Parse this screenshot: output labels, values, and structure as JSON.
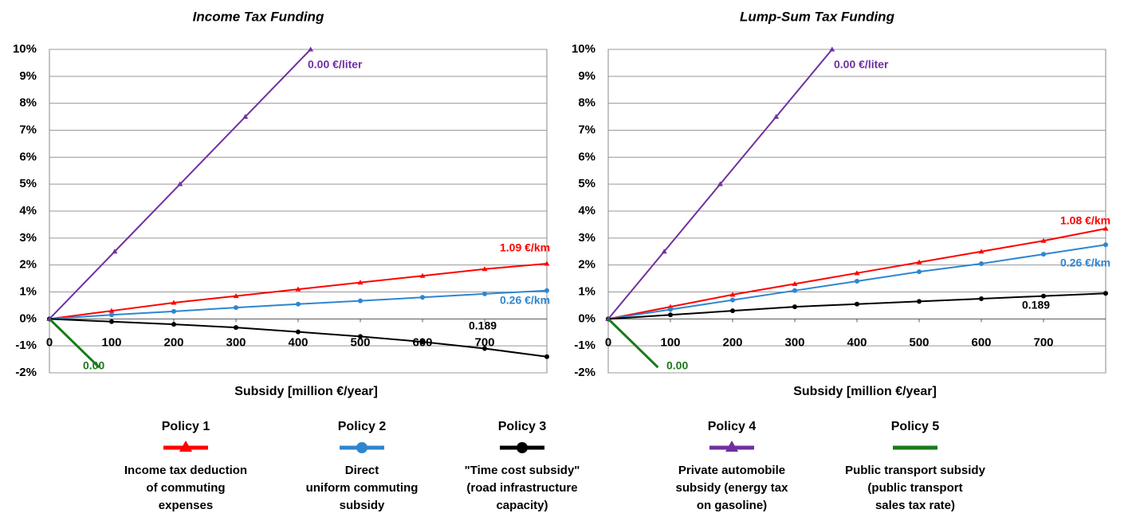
{
  "chart_data": [
    {
      "type": "line",
      "title": "Income Tax Funding",
      "x_label": "Subsidy [million €/year]",
      "xlim": [
        0,
        800
      ],
      "xticks": [
        0,
        100,
        200,
        300,
        400,
        500,
        600,
        700
      ],
      "ylim": [
        -2,
        10
      ],
      "yticks": [
        {
          "value": -2,
          "label": "-2%"
        },
        {
          "value": -1,
          "label": "-1%"
        },
        {
          "value": 0,
          "label": "0%"
        },
        {
          "value": 1,
          "label": "1%"
        },
        {
          "value": 2,
          "label": "2%"
        },
        {
          "value": 3,
          "label": "3%"
        },
        {
          "value": 4,
          "label": "4%"
        },
        {
          "value": 5,
          "label": "5%"
        },
        {
          "value": 6,
          "label": "6%"
        },
        {
          "value": 7,
          "label": "7%"
        },
        {
          "value": 8,
          "label": "8%"
        },
        {
          "value": 9,
          "label": "9%"
        },
        {
          "value": 10,
          "label": "10%"
        }
      ],
      "grid": true,
      "series": [
        {
          "name": "Policy 1",
          "color": "#ff0000",
          "marker": "triangle",
          "x": [
            0,
            100,
            200,
            300,
            400,
            500,
            600,
            700,
            800
          ],
          "values": [
            0,
            0.3,
            0.6,
            0.85,
            1.1,
            1.35,
            1.6,
            1.85,
            2.05
          ]
        },
        {
          "name": "Policy 2",
          "color": "#2e86d0",
          "marker": "circle",
          "x": [
            0,
            100,
            200,
            300,
            400,
            500,
            600,
            700,
            800
          ],
          "values": [
            0,
            0.15,
            0.28,
            0.42,
            0.55,
            0.67,
            0.8,
            0.93,
            1.05
          ]
        },
        {
          "name": "Policy 3",
          "color": "#000000",
          "marker": "circle",
          "x": [
            0,
            100,
            200,
            300,
            400,
            500,
            600,
            700,
            800
          ],
          "values": [
            0,
            -0.1,
            -0.2,
            -0.32,
            -0.48,
            -0.65,
            -0.85,
            -1.1,
            -1.4
          ]
        },
        {
          "name": "Policy 4",
          "color": "#7030a0",
          "marker": "triangle",
          "x": [
            0,
            105,
            210,
            315,
            420
          ],
          "values": [
            0,
            2.5,
            5,
            7.5,
            10
          ]
        },
        {
          "name": "Policy 5",
          "color": "#1a7a1a",
          "marker": "none",
          "x": [
            0,
            80
          ],
          "values": [
            0,
            -1.8
          ]
        }
      ],
      "annotations": [
        "1.09 €/km",
        "0.26 €/km",
        "0.189",
        "0.00 €/liter",
        "0.00"
      ]
    },
    {
      "type": "line",
      "title": "Lump-Sum Tax Funding",
      "x_label": "Subsidy [million €/year]",
      "xlim": [
        0,
        800
      ],
      "xticks": [
        0,
        100,
        200,
        300,
        400,
        500,
        600,
        700
      ],
      "ylim": [
        -2,
        10
      ],
      "yticks": [
        {
          "value": -2,
          "label": "-2%"
        },
        {
          "value": -1,
          "label": "-1%"
        },
        {
          "value": 0,
          "label": "0%"
        },
        {
          "value": 1,
          "label": "1%"
        },
        {
          "value": 2,
          "label": "2%"
        },
        {
          "value": 3,
          "label": "3%"
        },
        {
          "value": 4,
          "label": "4%"
        },
        {
          "value": 5,
          "label": "5%"
        },
        {
          "value": 6,
          "label": "6%"
        },
        {
          "value": 7,
          "label": "7%"
        },
        {
          "value": 8,
          "label": "8%"
        },
        {
          "value": 9,
          "label": "9%"
        },
        {
          "value": 10,
          "label": "10%"
        }
      ],
      "grid": true,
      "series": [
        {
          "color": "#ff0000",
          "marker": "triangle",
          "x": [
            0,
            100,
            200,
            300,
            400,
            500,
            600,
            700,
            800
          ],
          "values": [
            0,
            0.45,
            0.9,
            1.3,
            1.7,
            2.1,
            2.5,
            2.9,
            3.35
          ]
        },
        {
          "color": "#2e86d0",
          "marker": "circle",
          "x": [
            0,
            100,
            200,
            300,
            400,
            500,
            600,
            700,
            800
          ],
          "values": [
            0,
            0.35,
            0.7,
            1.05,
            1.4,
            1.75,
            2.05,
            2.4,
            2.75
          ]
        },
        {
          "color": "#000000",
          "marker": "circle",
          "x": [
            0,
            100,
            200,
            300,
            400,
            500,
            600,
            700,
            800
          ],
          "values": [
            0,
            0.15,
            0.3,
            0.45,
            0.55,
            0.65,
            0.75,
            0.85,
            0.95
          ]
        },
        {
          "color": "#7030a0",
          "marker": "triangle",
          "x": [
            0,
            90,
            180,
            270,
            360
          ],
          "values": [
            0,
            2.5,
            5,
            7.5,
            10
          ]
        },
        {
          "color": "#1a7a1a",
          "marker": "none",
          "x": [
            0,
            80
          ],
          "values": [
            0,
            -1.8
          ]
        }
      ],
      "annotations": [
        "1.08 €/km",
        "0.26 €/km",
        "0.189",
        "0.00 €/liter",
        "0.00"
      ]
    }
  ],
  "legend_descriptions": [
    [
      "Income tax deduction",
      "of commuting",
      "expenses"
    ],
    [
      "Direct",
      "uniform commuting",
      "subsidy"
    ],
    [
      "\"Time cost subsidy\"",
      "(road infrastructure",
      "capacity)"
    ],
    [
      "Private automobile",
      "subsidy (energy tax",
      "on gasoline)"
    ],
    [
      "Public transport  subsidy",
      "(public transport",
      "sales tax rate)"
    ]
  ]
}
